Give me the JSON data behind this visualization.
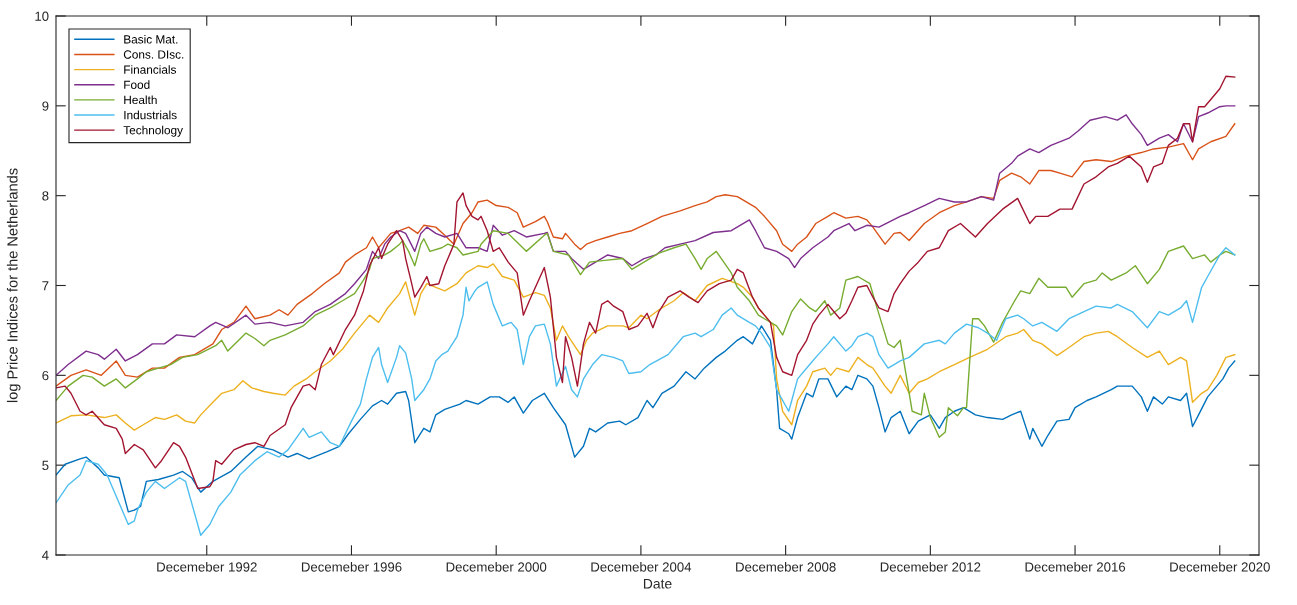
{
  "chart_data": {
    "type": "line",
    "xlabel": "Date",
    "ylabel": "log Price Indices for the Netherlands",
    "xlim": [
      "1988-10",
      "2022-01"
    ],
    "ylim": [
      4,
      10
    ],
    "yticks": [
      4,
      5,
      6,
      7,
      8,
      9,
      10
    ],
    "xticks": [
      {
        "value": "1992-12",
        "label": "Decemeber 1992"
      },
      {
        "value": "1996-12",
        "label": "Decemeber 1996"
      },
      {
        "value": "2000-12",
        "label": "Decemeber 2000"
      },
      {
        "value": "2004-12",
        "label": "Decemeber 2004"
      },
      {
        "value": "2008-12",
        "label": "Decemeber 2008"
      },
      {
        "value": "2012-12",
        "label": "Decemeber 2012"
      },
      {
        "value": "2016-12",
        "label": "Decemeber 2016"
      },
      {
        "value": "2020-12",
        "label": "Decemeber 2020"
      }
    ],
    "legend": "top left",
    "series": [
      {
        "name": "Basic Mat.",
        "color": "#0072bd",
        "x": [
          "1988-10",
          "1989-01",
          "1989-06",
          "1989-08",
          "1989-12",
          "1990-02",
          "1990-07",
          "1990-10",
          "1990-12",
          "1991-02",
          "1991-04",
          "1991-08",
          "1992-01",
          "1992-04",
          "1992-07",
          "1992-10",
          "1993-02",
          "1993-08",
          "1994-01",
          "1994-05",
          "1994-10",
          "1995-03",
          "1995-06",
          "1995-10",
          "1996-04",
          "1996-08",
          "1996-11",
          "1997-03",
          "1997-07",
          "1997-10",
          "1997-12",
          "1998-03",
          "1998-06",
          "1998-07",
          "1998-09",
          "1998-12",
          "1999-02",
          "1999-04",
          "1999-07",
          "1999-12",
          "2000-02",
          "2000-06",
          "2000-10",
          "2001-01",
          "2001-04",
          "2001-06",
          "2001-09",
          "2001-12",
          "2002-04",
          "2002-07",
          "2002-11",
          "2003-02",
          "2003-05",
          "2003-07",
          "2003-09",
          "2004-01",
          "2004-05",
          "2004-07",
          "2004-11",
          "2005-02",
          "2005-04",
          "2005-07",
          "2005-11",
          "2006-03",
          "2006-06",
          "2006-09",
          "2007-01",
          "2007-04",
          "2007-08",
          "2007-10",
          "2008-01",
          "2008-04",
          "2008-07",
          "2008-09",
          "2008-10",
          "2009-01",
          "2009-02",
          "2009-04",
          "2009-07",
          "2009-09",
          "2009-11",
          "2010-02",
          "2010-05",
          "2010-08",
          "2010-10",
          "2010-12",
          "2011-03",
          "2011-05",
          "2011-07",
          "2011-09",
          "2011-11",
          "2012-02",
          "2012-05",
          "2012-08",
          "2012-12",
          "2013-03",
          "2013-05",
          "2013-08",
          "2013-11",
          "2014-03",
          "2014-07",
          "2014-12",
          "2015-03",
          "2015-06",
          "2015-09",
          "2015-10",
          "2016-01",
          "2016-03",
          "2016-06",
          "2016-10",
          "2016-12",
          "2017-04",
          "2017-07",
          "2017-12",
          "2018-02",
          "2018-07",
          "2018-10",
          "2018-12",
          "2019-02",
          "2019-05",
          "2019-07",
          "2019-11",
          "2020-01",
          "2020-03",
          "2020-05",
          "2020-08",
          "2020-11",
          "2021-01",
          "2021-03",
          "2021-05"
        ],
        "values": [
          4.89,
          5.01,
          5.07,
          5.09,
          4.97,
          4.89,
          4.86,
          4.48,
          4.5,
          4.54,
          4.82,
          4.84,
          4.89,
          4.93,
          4.86,
          4.7,
          4.82,
          4.93,
          5.09,
          5.21,
          5.17,
          5.09,
          5.13,
          5.07,
          5.15,
          5.21,
          5.35,
          5.51,
          5.66,
          5.72,
          5.68,
          5.8,
          5.82,
          5.72,
          5.25,
          5.41,
          5.37,
          5.56,
          5.62,
          5.68,
          5.72,
          5.68,
          5.76,
          5.76,
          5.7,
          5.76,
          5.58,
          5.72,
          5.8,
          5.64,
          5.45,
          5.09,
          5.21,
          5.41,
          5.37,
          5.47,
          5.49,
          5.45,
          5.53,
          5.72,
          5.64,
          5.8,
          5.88,
          6.04,
          5.96,
          6.08,
          6.2,
          6.27,
          6.39,
          6.43,
          6.35,
          6.55,
          6.39,
          5.84,
          5.41,
          5.35,
          5.29,
          5.53,
          5.8,
          5.76,
          5.96,
          5.96,
          5.76,
          5.88,
          5.84,
          6.0,
          5.96,
          5.88,
          5.64,
          5.37,
          5.53,
          5.6,
          5.35,
          5.49,
          5.56,
          5.41,
          5.53,
          5.6,
          5.64,
          5.56,
          5.53,
          5.51,
          5.56,
          5.6,
          5.29,
          5.41,
          5.21,
          5.33,
          5.49,
          5.51,
          5.64,
          5.72,
          5.76,
          5.84,
          5.88,
          5.88,
          5.76,
          5.6,
          5.76,
          5.68,
          5.76,
          5.72,
          5.8,
          5.43,
          5.56,
          5.76,
          5.88,
          5.96,
          6.08,
          6.16
        ]
      },
      {
        "name": "Cons. DIsc.",
        "color": "#d95319",
        "x": [
          "1988-10",
          "1989-03",
          "1989-08",
          "1990-01",
          "1990-06",
          "1990-09",
          "1991-01",
          "1991-06",
          "1991-10",
          "1992-03",
          "1992-08",
          "1993-02",
          "1993-05",
          "1993-09",
          "1994-01",
          "1994-04",
          "1994-09",
          "1994-12",
          "1995-03",
          "1995-06",
          "1995-11",
          "1996-03",
          "1996-08",
          "1996-10",
          "1997-01",
          "1997-05",
          "1997-07",
          "1997-09",
          "1997-11",
          "1998-01",
          "1998-04",
          "1998-07",
          "1998-10",
          "1998-12",
          "1999-04",
          "1999-07",
          "1999-10",
          "2000-01",
          "2000-04",
          "2000-06",
          "2000-09",
          "2000-12",
          "2001-04",
          "2001-07",
          "2001-09",
          "2002-01",
          "2002-04",
          "2002-05",
          "2002-07",
          "2002-10",
          "2002-11",
          "2003-02",
          "2003-04",
          "2003-06",
          "2003-09",
          "2004-01",
          "2004-05",
          "2004-09",
          "2005-02",
          "2005-07",
          "2006-01",
          "2006-06",
          "2006-10",
          "2007-01",
          "2007-04",
          "2007-08",
          "2007-10",
          "2008-02",
          "2008-05",
          "2008-09",
          "2008-11",
          "2009-02",
          "2009-04",
          "2009-07",
          "2009-10",
          "2010-02",
          "2010-04",
          "2010-08",
          "2010-12",
          "2011-03",
          "2011-05",
          "2011-09",
          "2011-12",
          "2012-02",
          "2012-05",
          "2012-10",
          "2013-03",
          "2013-08",
          "2013-12",
          "2014-05",
          "2014-09",
          "2014-11",
          "2015-03",
          "2015-06",
          "2015-09",
          "2015-12",
          "2016-04",
          "2016-07",
          "2016-11",
          "2017-03",
          "2017-07",
          "2017-12",
          "2018-05",
          "2018-10",
          "2019-02",
          "2019-07",
          "2019-12",
          "2020-03",
          "2020-05",
          "2020-09",
          "2021-02",
          "2021-05"
        ],
        "values": [
          5.88,
          6.0,
          6.06,
          6.0,
          6.16,
          6.0,
          5.98,
          6.08,
          6.08,
          6.2,
          6.23,
          6.35,
          6.51,
          6.59,
          6.77,
          6.63,
          6.67,
          6.73,
          6.67,
          6.79,
          6.91,
          7.02,
          7.14,
          7.26,
          7.34,
          7.42,
          7.54,
          7.42,
          7.5,
          7.58,
          7.61,
          7.65,
          7.58,
          7.67,
          7.65,
          7.56,
          7.46,
          7.69,
          7.81,
          7.93,
          7.95,
          7.89,
          7.87,
          7.81,
          7.65,
          7.71,
          7.77,
          7.71,
          7.54,
          7.52,
          7.58,
          7.46,
          7.4,
          7.46,
          7.5,
          7.54,
          7.58,
          7.61,
          7.69,
          7.77,
          7.83,
          7.89,
          7.93,
          7.99,
          8.01,
          7.99,
          7.95,
          7.87,
          7.77,
          7.61,
          7.46,
          7.38,
          7.46,
          7.54,
          7.69,
          7.77,
          7.81,
          7.75,
          7.77,
          7.73,
          7.65,
          7.46,
          7.58,
          7.59,
          7.5,
          7.69,
          7.81,
          7.89,
          7.93,
          7.99,
          7.97,
          8.17,
          8.25,
          8.21,
          8.13,
          8.28,
          8.28,
          8.25,
          8.21,
          8.38,
          8.4,
          8.38,
          8.44,
          8.48,
          8.52,
          8.54,
          8.58,
          8.4,
          8.52,
          8.6,
          8.66,
          8.8
        ]
      },
      {
        "name": "Financials",
        "color": "#edb120",
        "x": [
          "1988-10",
          "1989-03",
          "1989-08",
          "1990-02",
          "1990-06",
          "1990-09",
          "1990-12",
          "1991-03",
          "1991-07",
          "1991-10",
          "1992-02",
          "1992-05",
          "1992-08",
          "1992-10",
          "1993-02",
          "1993-05",
          "1993-09",
          "1993-12",
          "1994-03",
          "1994-07",
          "1994-10",
          "1995-02",
          "1995-05",
          "1995-09",
          "1995-12",
          "1996-05",
          "1996-09",
          "1997-01",
          "1997-06",
          "1997-09",
          "1997-12",
          "1998-04",
          "1998-06",
          "1998-08",
          "1998-09",
          "1998-11",
          "1999-01",
          "1999-04",
          "1999-07",
          "1999-11",
          "2000-02",
          "2000-06",
          "2000-09",
          "2000-11",
          "2001-02",
          "2001-06",
          "2001-09",
          "2002-01",
          "2002-04",
          "2002-06",
          "2002-08",
          "2002-10",
          "2002-12",
          "2003-04",
          "2003-06",
          "2003-08",
          "2004-01",
          "2004-06",
          "2004-08",
          "2004-12",
          "2005-02",
          "2005-06",
          "2005-11",
          "2006-02",
          "2006-06",
          "2006-10",
          "2007-03",
          "2007-08",
          "2007-10",
          "2008-01",
          "2008-03",
          "2008-05",
          "2008-08",
          "2008-09",
          "2008-11",
          "2009-02",
          "2009-04",
          "2009-07",
          "2009-09",
          "2010-01",
          "2010-03",
          "2010-05",
          "2010-09",
          "2010-12",
          "2011-03",
          "2011-05",
          "2011-09",
          "2011-11",
          "2012-02",
          "2012-05",
          "2012-08",
          "2012-11",
          "2013-03",
          "2013-08",
          "2014-01",
          "2014-07",
          "2015-01",
          "2015-05",
          "2015-07",
          "2015-10",
          "2016-01",
          "2016-06",
          "2016-10",
          "2017-03",
          "2017-07",
          "2017-11",
          "2018-02",
          "2018-07",
          "2018-12",
          "2019-04",
          "2019-07",
          "2019-11",
          "2020-01",
          "2020-03",
          "2020-06",
          "2020-08",
          "2020-11",
          "2021-02",
          "2021-05"
        ],
        "values": [
          5.47,
          5.55,
          5.56,
          5.53,
          5.56,
          5.47,
          5.39,
          5.45,
          5.53,
          5.51,
          5.56,
          5.49,
          5.47,
          5.56,
          5.7,
          5.8,
          5.84,
          5.94,
          5.86,
          5.82,
          5.8,
          5.78,
          5.88,
          5.96,
          6.04,
          6.16,
          6.29,
          6.47,
          6.67,
          6.59,
          6.75,
          6.91,
          7.04,
          6.79,
          6.67,
          6.91,
          7.02,
          6.98,
          6.94,
          7.02,
          7.14,
          7.22,
          7.2,
          7.24,
          7.1,
          7.06,
          6.87,
          6.92,
          6.89,
          6.75,
          6.39,
          6.55,
          6.43,
          6.23,
          6.39,
          6.47,
          6.55,
          6.55,
          6.53,
          6.67,
          6.63,
          6.73,
          6.83,
          6.92,
          6.83,
          7.0,
          7.08,
          7.02,
          6.98,
          6.87,
          6.75,
          6.67,
          6.55,
          5.96,
          5.6,
          5.45,
          5.72,
          5.88,
          6.04,
          6.08,
          6.0,
          6.08,
          6.04,
          6.2,
          6.12,
          6.08,
          5.88,
          5.8,
          6.0,
          5.8,
          5.92,
          5.96,
          6.04,
          6.12,
          6.2,
          6.29,
          6.43,
          6.47,
          6.51,
          6.39,
          6.35,
          6.22,
          6.31,
          6.43,
          6.47,
          6.49,
          6.43,
          6.31,
          6.2,
          6.27,
          6.12,
          6.2,
          6.16,
          5.7,
          5.8,
          5.84,
          6.0,
          6.2,
          6.23
        ]
      },
      {
        "name": "Food",
        "color": "#7e2f8e",
        "x": [
          "1988-10",
          "1989-02",
          "1989-08",
          "1989-12",
          "1990-02",
          "1990-06",
          "1990-09",
          "1991-01",
          "1991-06",
          "1991-10",
          "1992-02",
          "1992-08",
          "1993-01",
          "1993-03",
          "1993-07",
          "1994-01",
          "1994-04",
          "1994-09",
          "1995-02",
          "1995-08",
          "1995-12",
          "1996-05",
          "1996-10",
          "1997-01",
          "1997-05",
          "1997-07",
          "1997-09",
          "1997-11",
          "1998-01",
          "1998-04",
          "1998-06",
          "1998-09",
          "1998-11",
          "1999-01",
          "1999-04",
          "1999-07",
          "1999-11",
          "2000-02",
          "2000-06",
          "2000-09",
          "2000-11",
          "2001-02",
          "2001-06",
          "2001-10",
          "2002-04",
          "2002-05",
          "2002-07",
          "2002-11",
          "2003-01",
          "2003-05",
          "2003-08",
          "2004-01",
          "2004-06",
          "2004-09",
          "2005-01",
          "2005-05",
          "2005-08",
          "2006-01",
          "2006-06",
          "2006-12",
          "2007-06",
          "2007-12",
          "2008-02",
          "2008-05",
          "2008-09",
          "2009-01",
          "2009-03",
          "2009-05",
          "2009-09",
          "2010-02",
          "2010-04",
          "2010-09",
          "2010-11",
          "2011-03",
          "2011-07",
          "2012-02",
          "2012-05",
          "2012-10",
          "2013-03",
          "2013-08",
          "2013-12",
          "2014-05",
          "2014-09",
          "2014-11",
          "2015-03",
          "2015-05",
          "2015-09",
          "2015-12",
          "2016-04",
          "2016-10",
          "2017-01",
          "2017-05",
          "2017-10",
          "2018-02",
          "2018-05",
          "2018-07",
          "2018-10",
          "2018-12",
          "2019-04",
          "2019-07",
          "2019-10",
          "2019-12",
          "2020-03",
          "2020-05",
          "2020-08",
          "2020-12",
          "2021-02",
          "2021-05"
        ],
        "values": [
          6.0,
          6.12,
          6.27,
          6.23,
          6.18,
          6.29,
          6.16,
          6.23,
          6.35,
          6.35,
          6.45,
          6.43,
          6.55,
          6.59,
          6.53,
          6.67,
          6.57,
          6.59,
          6.55,
          6.59,
          6.71,
          6.79,
          6.91,
          7.02,
          7.18,
          7.38,
          7.3,
          7.46,
          7.54,
          7.61,
          7.58,
          7.38,
          7.58,
          7.65,
          7.58,
          7.54,
          7.58,
          7.42,
          7.42,
          7.38,
          7.67,
          7.56,
          7.61,
          7.54,
          7.58,
          7.59,
          7.38,
          7.38,
          7.3,
          7.18,
          7.24,
          7.34,
          7.3,
          7.22,
          7.3,
          7.34,
          7.42,
          7.46,
          7.5,
          7.59,
          7.61,
          7.73,
          7.61,
          7.42,
          7.38,
          7.3,
          7.2,
          7.3,
          7.42,
          7.54,
          7.61,
          7.69,
          7.61,
          7.67,
          7.65,
          7.77,
          7.81,
          7.89,
          7.97,
          7.93,
          7.93,
          7.99,
          7.95,
          8.25,
          8.36,
          8.44,
          8.52,
          8.48,
          8.56,
          8.64,
          8.72,
          8.84,
          8.88,
          8.84,
          8.9,
          8.8,
          8.68,
          8.56,
          8.64,
          8.68,
          8.6,
          8.8,
          8.6,
          8.88,
          8.92,
          8.99,
          9.0,
          9.0
        ]
      },
      {
        "name": "Health",
        "color": "#77ac30",
        "x": [
          "1988-10",
          "1989-02",
          "1989-07",
          "1989-10",
          "1990-02",
          "1990-06",
          "1990-09",
          "1991-01",
          "1991-04",
          "1991-08",
          "1991-12",
          "1992-04",
          "1992-09",
          "1993-03",
          "1993-05",
          "1993-07",
          "1994-01",
          "1994-04",
          "1994-07",
          "1994-09",
          "1995-02",
          "1995-08",
          "1995-12",
          "1996-05",
          "1996-09",
          "1997-01",
          "1997-04",
          "1997-06",
          "1997-07",
          "1997-11",
          "1998-01",
          "1998-04",
          "1998-05",
          "1998-07",
          "1998-09",
          "1998-11",
          "1998-12",
          "1999-02",
          "1999-06",
          "1999-08",
          "1999-11",
          "2000-01",
          "2000-06",
          "2000-07",
          "2000-11",
          "2001-04",
          "2001-10",
          "2002-04",
          "2002-05",
          "2002-07",
          "2002-12",
          "2003-04",
          "2003-07",
          "2003-12",
          "2004-06",
          "2004-09",
          "2005-01",
          "2005-06",
          "2005-11",
          "2006-03",
          "2006-06",
          "2006-08",
          "2006-10",
          "2007-01",
          "2007-06",
          "2007-08",
          "2007-12",
          "2008-03",
          "2008-05",
          "2008-09",
          "2008-11",
          "2009-02",
          "2009-05",
          "2009-08",
          "2009-10",
          "2010-01",
          "2010-03",
          "2010-06",
          "2010-08",
          "2010-12",
          "2011-04",
          "2011-06",
          "2011-10",
          "2011-12",
          "2012-02",
          "2012-04",
          "2012-06",
          "2012-09",
          "2012-10",
          "2012-12",
          "2013-03",
          "2013-05",
          "2013-06",
          "2013-09",
          "2013-11",
          "2013-12",
          "2014-02",
          "2014-04",
          "2014-06",
          "2014-09",
          "2014-12",
          "2015-04",
          "2015-06",
          "2015-09",
          "2015-12",
          "2016-03",
          "2016-06",
          "2016-09",
          "2016-11",
          "2017-03",
          "2017-07",
          "2017-09",
          "2017-12",
          "2018-05",
          "2018-08",
          "2018-12",
          "2019-04",
          "2019-07",
          "2019-12",
          "2020-03",
          "2020-07",
          "2020-09",
          "2020-12",
          "2021-02",
          "2021-05"
        ],
        "values": [
          5.72,
          5.88,
          6.0,
          5.98,
          5.88,
          5.96,
          5.86,
          5.96,
          6.04,
          6.08,
          6.12,
          6.2,
          6.23,
          6.33,
          6.39,
          6.27,
          6.47,
          6.41,
          6.33,
          6.39,
          6.45,
          6.55,
          6.67,
          6.75,
          6.83,
          6.91,
          7.06,
          7.18,
          7.3,
          7.34,
          7.38,
          7.46,
          7.5,
          7.38,
          7.22,
          7.46,
          7.52,
          7.38,
          7.42,
          7.46,
          7.42,
          7.34,
          7.38,
          7.46,
          7.61,
          7.58,
          7.38,
          7.56,
          7.58,
          7.38,
          7.34,
          7.12,
          7.26,
          7.28,
          7.3,
          7.18,
          7.26,
          7.36,
          7.42,
          7.46,
          7.3,
          7.18,
          7.3,
          7.38,
          7.14,
          6.98,
          6.83,
          6.67,
          6.63,
          6.55,
          6.45,
          6.71,
          6.85,
          6.75,
          6.71,
          6.83,
          6.67,
          6.75,
          7.06,
          7.1,
          7.02,
          6.79,
          6.35,
          6.31,
          6.39,
          6.0,
          5.6,
          5.56,
          5.8,
          5.53,
          5.31,
          5.37,
          5.64,
          5.55,
          5.64,
          5.64,
          6.63,
          6.63,
          6.55,
          6.37,
          6.59,
          6.83,
          6.94,
          6.91,
          7.08,
          6.98,
          6.98,
          6.98,
          6.87,
          7.02,
          7.06,
          7.14,
          7.06,
          7.14,
          7.22,
          7.02,
          7.18,
          7.38,
          7.44,
          7.3,
          7.34,
          7.26,
          7.34,
          7.38,
          7.34
        ]
      },
      {
        "name": "Industrials",
        "color": "#4dbeee",
        "x": [
          "1988-10",
          "1989-02",
          "1989-06",
          "1989-08",
          "1989-12",
          "1990-02",
          "1990-03",
          "1990-10",
          "1990-12",
          "1991-01",
          "1991-04",
          "1991-07",
          "1991-10",
          "1992-03",
          "1992-05",
          "1992-08",
          "1992-10",
          "1993-01",
          "1993-04",
          "1993-08",
          "1993-11",
          "1994-04",
          "1994-08",
          "1994-12",
          "1995-03",
          "1995-08",
          "1995-10",
          "1996-02",
          "1996-05",
          "1996-08",
          "1996-12",
          "1997-03",
          "1997-05",
          "1997-07",
          "1997-09",
          "1997-10",
          "1997-12",
          "1998-03",
          "1998-04",
          "1998-06",
          "1998-08",
          "1998-09",
          "1998-12",
          "1999-02",
          "1999-04",
          "1999-06",
          "1999-08",
          "1999-11",
          "2000-01",
          "2000-02",
          "2000-03",
          "2000-05",
          "2000-06",
          "2000-09",
          "2000-11",
          "2001-02",
          "2001-05",
          "2001-07",
          "2001-09",
          "2001-11",
          "2002-01",
          "2002-04",
          "2002-06",
          "2002-08",
          "2002-11",
          "2003-01",
          "2003-03",
          "2003-05",
          "2003-08",
          "2003-11",
          "2004-03",
          "2004-06",
          "2004-08",
          "2004-12",
          "2005-03",
          "2005-09",
          "2006-02",
          "2006-06",
          "2006-08",
          "2006-12",
          "2007-03",
          "2007-06",
          "2007-08",
          "2007-12",
          "2008-02",
          "2008-04",
          "2008-07",
          "2008-09",
          "2009-01",
          "2009-02",
          "2009-04",
          "2009-08",
          "2009-10",
          "2010-02",
          "2010-04",
          "2010-08",
          "2010-10",
          "2010-12",
          "2011-03",
          "2011-05",
          "2011-07",
          "2011-10",
          "2011-12",
          "2012-02",
          "2012-05",
          "2012-10",
          "2013-03",
          "2013-05",
          "2013-08",
          "2013-12",
          "2014-04",
          "2014-07",
          "2014-10",
          "2015-01",
          "2015-05",
          "2015-07",
          "2015-10",
          "2016-01",
          "2016-06",
          "2016-10",
          "2017-03",
          "2017-07",
          "2017-12",
          "2018-02",
          "2018-07",
          "2018-12",
          "2019-04",
          "2019-07",
          "2019-11",
          "2020-01",
          "2020-03",
          "2020-06",
          "2020-08",
          "2020-12",
          "2021-02",
          "2021-05"
        ],
        "values": [
          4.58,
          4.78,
          4.89,
          5.05,
          5.01,
          4.93,
          4.89,
          4.34,
          4.38,
          4.5,
          4.7,
          4.82,
          4.74,
          4.86,
          4.82,
          4.46,
          4.22,
          4.34,
          4.54,
          4.7,
          4.89,
          5.05,
          5.15,
          5.09,
          5.17,
          5.41,
          5.31,
          5.37,
          5.25,
          5.21,
          5.49,
          5.68,
          5.96,
          6.2,
          6.31,
          6.12,
          5.92,
          6.2,
          6.33,
          6.25,
          5.96,
          5.72,
          5.84,
          5.96,
          6.16,
          6.23,
          6.27,
          6.43,
          6.67,
          6.98,
          6.83,
          6.94,
          6.98,
          7.04,
          6.79,
          6.55,
          6.59,
          6.51,
          6.12,
          6.43,
          6.55,
          6.57,
          6.35,
          5.88,
          6.1,
          5.84,
          5.76,
          5.96,
          6.12,
          6.23,
          6.2,
          6.16,
          6.02,
          6.04,
          6.12,
          6.23,
          6.43,
          6.47,
          6.43,
          6.51,
          6.67,
          6.75,
          6.67,
          6.59,
          6.55,
          6.47,
          6.31,
          5.84,
          5.6,
          5.72,
          5.96,
          6.12,
          6.2,
          6.35,
          6.43,
          6.27,
          6.33,
          6.43,
          6.47,
          6.43,
          6.23,
          6.08,
          6.12,
          6.16,
          6.2,
          6.35,
          6.39,
          6.35,
          6.47,
          6.57,
          6.53,
          6.47,
          6.39,
          6.63,
          6.67,
          6.63,
          6.55,
          6.59,
          6.49,
          6.63,
          6.71,
          6.77,
          6.75,
          6.79,
          6.71,
          6.53,
          6.71,
          6.67,
          6.75,
          6.83,
          6.59,
          6.98,
          7.1,
          7.34,
          7.42,
          7.34
        ]
      },
      {
        "name": "Technology",
        "color": "#a2142f",
        "x": [
          "1988-10",
          "1989-01",
          "1989-03",
          "1989-06",
          "1989-08",
          "1989-10",
          "1990-02",
          "1990-06",
          "1990-08",
          "1990-09",
          "1990-12",
          "1991-03",
          "1991-07",
          "1991-09",
          "1992-01",
          "1992-03",
          "1992-05",
          "1992-09",
          "1993-01",
          "1993-02",
          "1993-03",
          "1993-05",
          "1993-09",
          "1994-01",
          "1994-04",
          "1994-07",
          "1994-09",
          "1995-02",
          "1995-04",
          "1995-08",
          "1995-10",
          "1995-12",
          "1996-02",
          "1996-05",
          "1996-06",
          "1996-10",
          "1997-01",
          "1997-04",
          "1997-06",
          "1997-09",
          "1997-10",
          "1997-12",
          "1998-03",
          "1998-05",
          "1998-06",
          "1998-08",
          "1998-09",
          "1998-11",
          "1999-01",
          "1999-02",
          "1999-05",
          "1999-07",
          "1999-09",
          "1999-10",
          "1999-11",
          "2000-01",
          "2000-02",
          "2000-04",
          "2000-06",
          "2000-07",
          "2000-09",
          "2000-11",
          "2001-01",
          "2001-04",
          "2001-07",
          "2001-09",
          "2001-11",
          "2002-01",
          "2002-04",
          "2002-06",
          "2002-08",
          "2002-10",
          "2002-11",
          "2003-01",
          "2003-03",
          "2003-05",
          "2003-07",
          "2003-09",
          "2003-11",
          "2004-01",
          "2004-03",
          "2004-06",
          "2004-08",
          "2004-11",
          "2005-02",
          "2005-04",
          "2005-06",
          "2005-09",
          "2006-01",
          "2006-04",
          "2006-07",
          "2006-10",
          "2007-02",
          "2007-06",
          "2007-08",
          "2007-10",
          "2008-01",
          "2008-03",
          "2008-07",
          "2008-09",
          "2008-11",
          "2009-02",
          "2009-04",
          "2009-07",
          "2009-09",
          "2009-11",
          "2010-02",
          "2010-04",
          "2010-06",
          "2010-08",
          "2010-10",
          "2010-12",
          "2011-03",
          "2011-05",
          "2011-07",
          "2011-10",
          "2011-12",
          "2012-02",
          "2012-05",
          "2012-08",
          "2012-11",
          "2013-03",
          "2013-06",
          "2013-10",
          "2014-03",
          "2014-07",
          "2014-12",
          "2015-05",
          "2015-09",
          "2015-11",
          "2016-03",
          "2016-07",
          "2016-11",
          "2017-03",
          "2017-07",
          "2017-11",
          "2018-02",
          "2018-06",
          "2018-10",
          "2018-12",
          "2019-02",
          "2019-05",
          "2019-07",
          "2019-10",
          "2019-12",
          "2020-02",
          "2020-03",
          "2020-05",
          "2020-07",
          "2020-09",
          "2020-12",
          "2021-02",
          "2021-05"
        ],
        "values": [
          5.86,
          5.88,
          5.8,
          5.6,
          5.56,
          5.6,
          5.45,
          5.41,
          5.29,
          5.13,
          5.23,
          5.17,
          4.97,
          5.05,
          5.25,
          5.21,
          5.09,
          4.74,
          4.76,
          4.82,
          5.05,
          5.01,
          5.17,
          5.23,
          5.25,
          5.21,
          5.33,
          5.45,
          5.64,
          5.88,
          5.9,
          5.84,
          6.12,
          6.31,
          6.23,
          6.51,
          6.67,
          6.94,
          7.22,
          7.42,
          7.3,
          7.46,
          7.61,
          7.5,
          7.3,
          7.02,
          6.87,
          6.98,
          7.1,
          7.0,
          7.02,
          7.22,
          7.38,
          7.46,
          7.93,
          8.03,
          7.89,
          7.77,
          7.73,
          7.77,
          7.61,
          7.38,
          7.42,
          7.26,
          7.14,
          6.67,
          6.83,
          6.98,
          7.2,
          6.87,
          6.2,
          5.92,
          6.43,
          6.2,
          5.88,
          6.35,
          6.59,
          6.47,
          6.79,
          6.83,
          6.77,
          6.71,
          6.51,
          6.55,
          6.69,
          6.53,
          6.71,
          6.87,
          6.94,
          6.87,
          6.81,
          6.94,
          7.02,
          7.06,
          7.18,
          7.14,
          6.87,
          6.75,
          6.59,
          6.2,
          6.04,
          6.0,
          6.23,
          6.39,
          6.57,
          6.67,
          6.79,
          6.71,
          6.63,
          6.69,
          6.83,
          6.98,
          7.0,
          6.87,
          6.75,
          6.71,
          6.91,
          7.02,
          7.16,
          7.26,
          7.38,
          7.42,
          7.61,
          7.69,
          7.54,
          7.69,
          7.85,
          7.97,
          7.69,
          7.77,
          7.77,
          7.85,
          7.85,
          8.13,
          8.21,
          8.32,
          8.36,
          8.44,
          8.32,
          8.15,
          8.32,
          8.36,
          8.56,
          8.64,
          8.8,
          8.8,
          8.6,
          8.99,
          8.99,
          9.07,
          9.19,
          9.33,
          9.32
        ]
      }
    ]
  }
}
